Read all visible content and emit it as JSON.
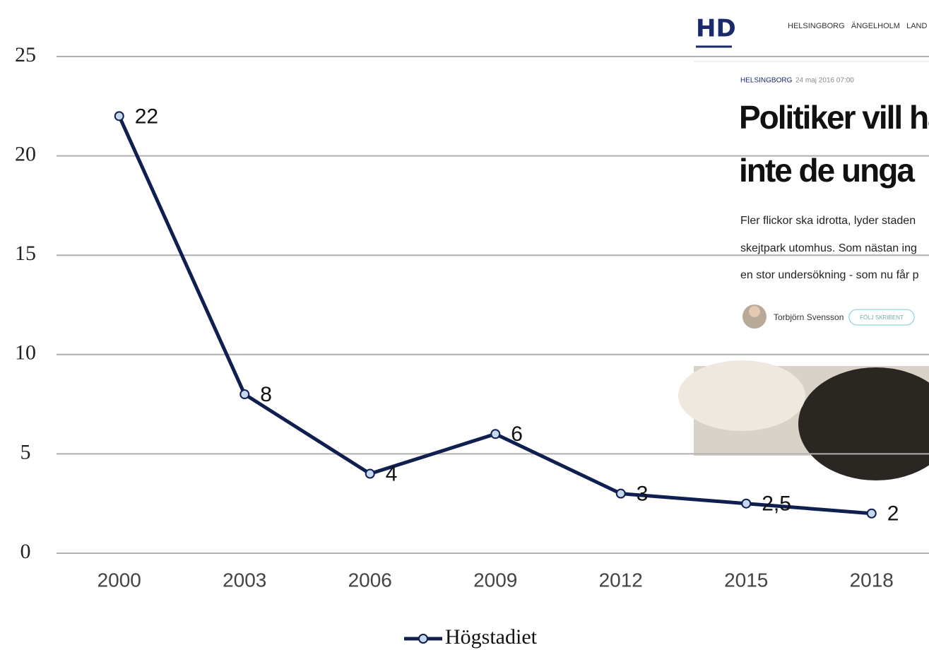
{
  "chart_data": {
    "type": "line",
    "categories": [
      "2000",
      "2003",
      "2006",
      "2009",
      "2012",
      "2015",
      "2018"
    ],
    "series": [
      {
        "name": "Högstadiet",
        "color": "#0f1f4f",
        "values": [
          22,
          8,
          4,
          6,
          3,
          2.5,
          2
        ],
        "value_labels": [
          "22",
          "8",
          "4",
          "6",
          "3",
          "2,5",
          "2"
        ]
      }
    ],
    "ylim": [
      0,
      25
    ],
    "yticks": [
      0,
      5,
      10,
      15,
      20,
      25
    ],
    "grid": true,
    "legend": "bottom"
  },
  "overlay": {
    "logo": "HD",
    "nav": "HELSINGBORG   ÄNGELHOLM   LAND",
    "section": "HELSINGBORG",
    "date": "24 maj 2016 07:00",
    "headline": [
      "Politiker vill ha",
      "inte de unga"
    ],
    "body": [
      "Fler flickor ska idrotta, lyder staden",
      "skejtpark utomhus. Som nästan ing",
      "en stor undersökning - som nu får p"
    ],
    "author": "Torbjörn Svensson",
    "button": "FÖLJ SKRIBENT"
  }
}
